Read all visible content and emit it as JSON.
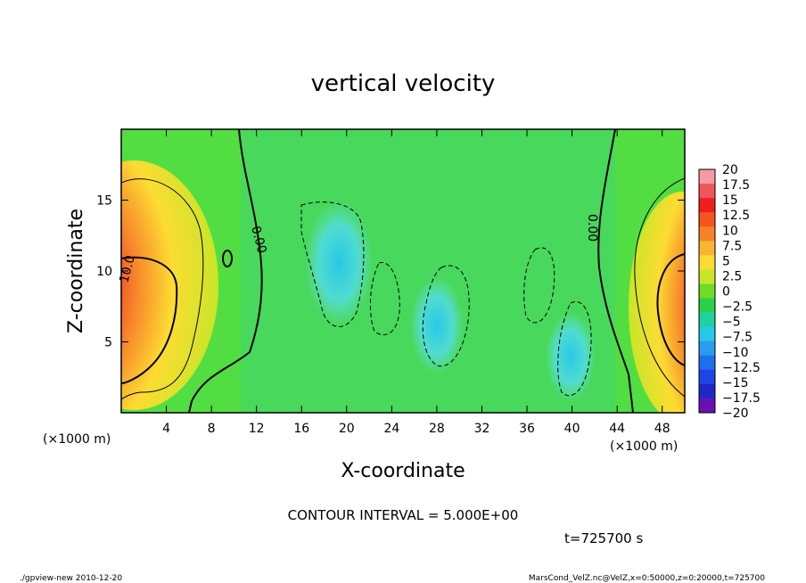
{
  "chart_data": {
    "type": "heatmap",
    "title": "vertical velocity",
    "xlabel": "X-coordinate",
    "ylabel": "Z-coordinate",
    "x_unit_left": "(×1000 m)",
    "x_unit_right": "(×1000 m)",
    "xlim": [
      0,
      50
    ],
    "ylim": [
      0,
      20
    ],
    "x_ticks": [
      4,
      8,
      12,
      16,
      20,
      24,
      28,
      32,
      36,
      40,
      44,
      48
    ],
    "y_ticks": [
      5,
      10,
      15
    ],
    "colorbar": {
      "labels": [
        "20",
        "17.5",
        "15",
        "12.5",
        "10",
        "7.5",
        "5",
        "2.5",
        "0",
        "−2.5",
        "−5",
        "−7.5",
        "−10",
        "−12.5",
        "−15",
        "−17.5",
        "−20"
      ],
      "colors": [
        "#f59aa2",
        "#f2545e",
        "#f01e1e",
        "#f5551e",
        "#f7822a",
        "#fab432",
        "#fcdc32",
        "#c8e628",
        "#6fdc28",
        "#28d246",
        "#1ed2a0",
        "#28c8e6",
        "#2a9bf0",
        "#1e6ef0",
        "#1e46e6",
        "#1e28c8",
        "#6a0fb4"
      ]
    },
    "contour_labels": [
      "10.0",
      "0.00",
      "0.00"
    ],
    "contour_interval_text": "CONTOUR INTERVAL = 5.000E+00",
    "time_text": "t=725700 s"
  },
  "footer": {
    "left": "./gpview-new 2010-12-20",
    "right": "MarsCond_VelZ.nc@VelZ,x=0:50000,z=0:20000,t=725700"
  }
}
